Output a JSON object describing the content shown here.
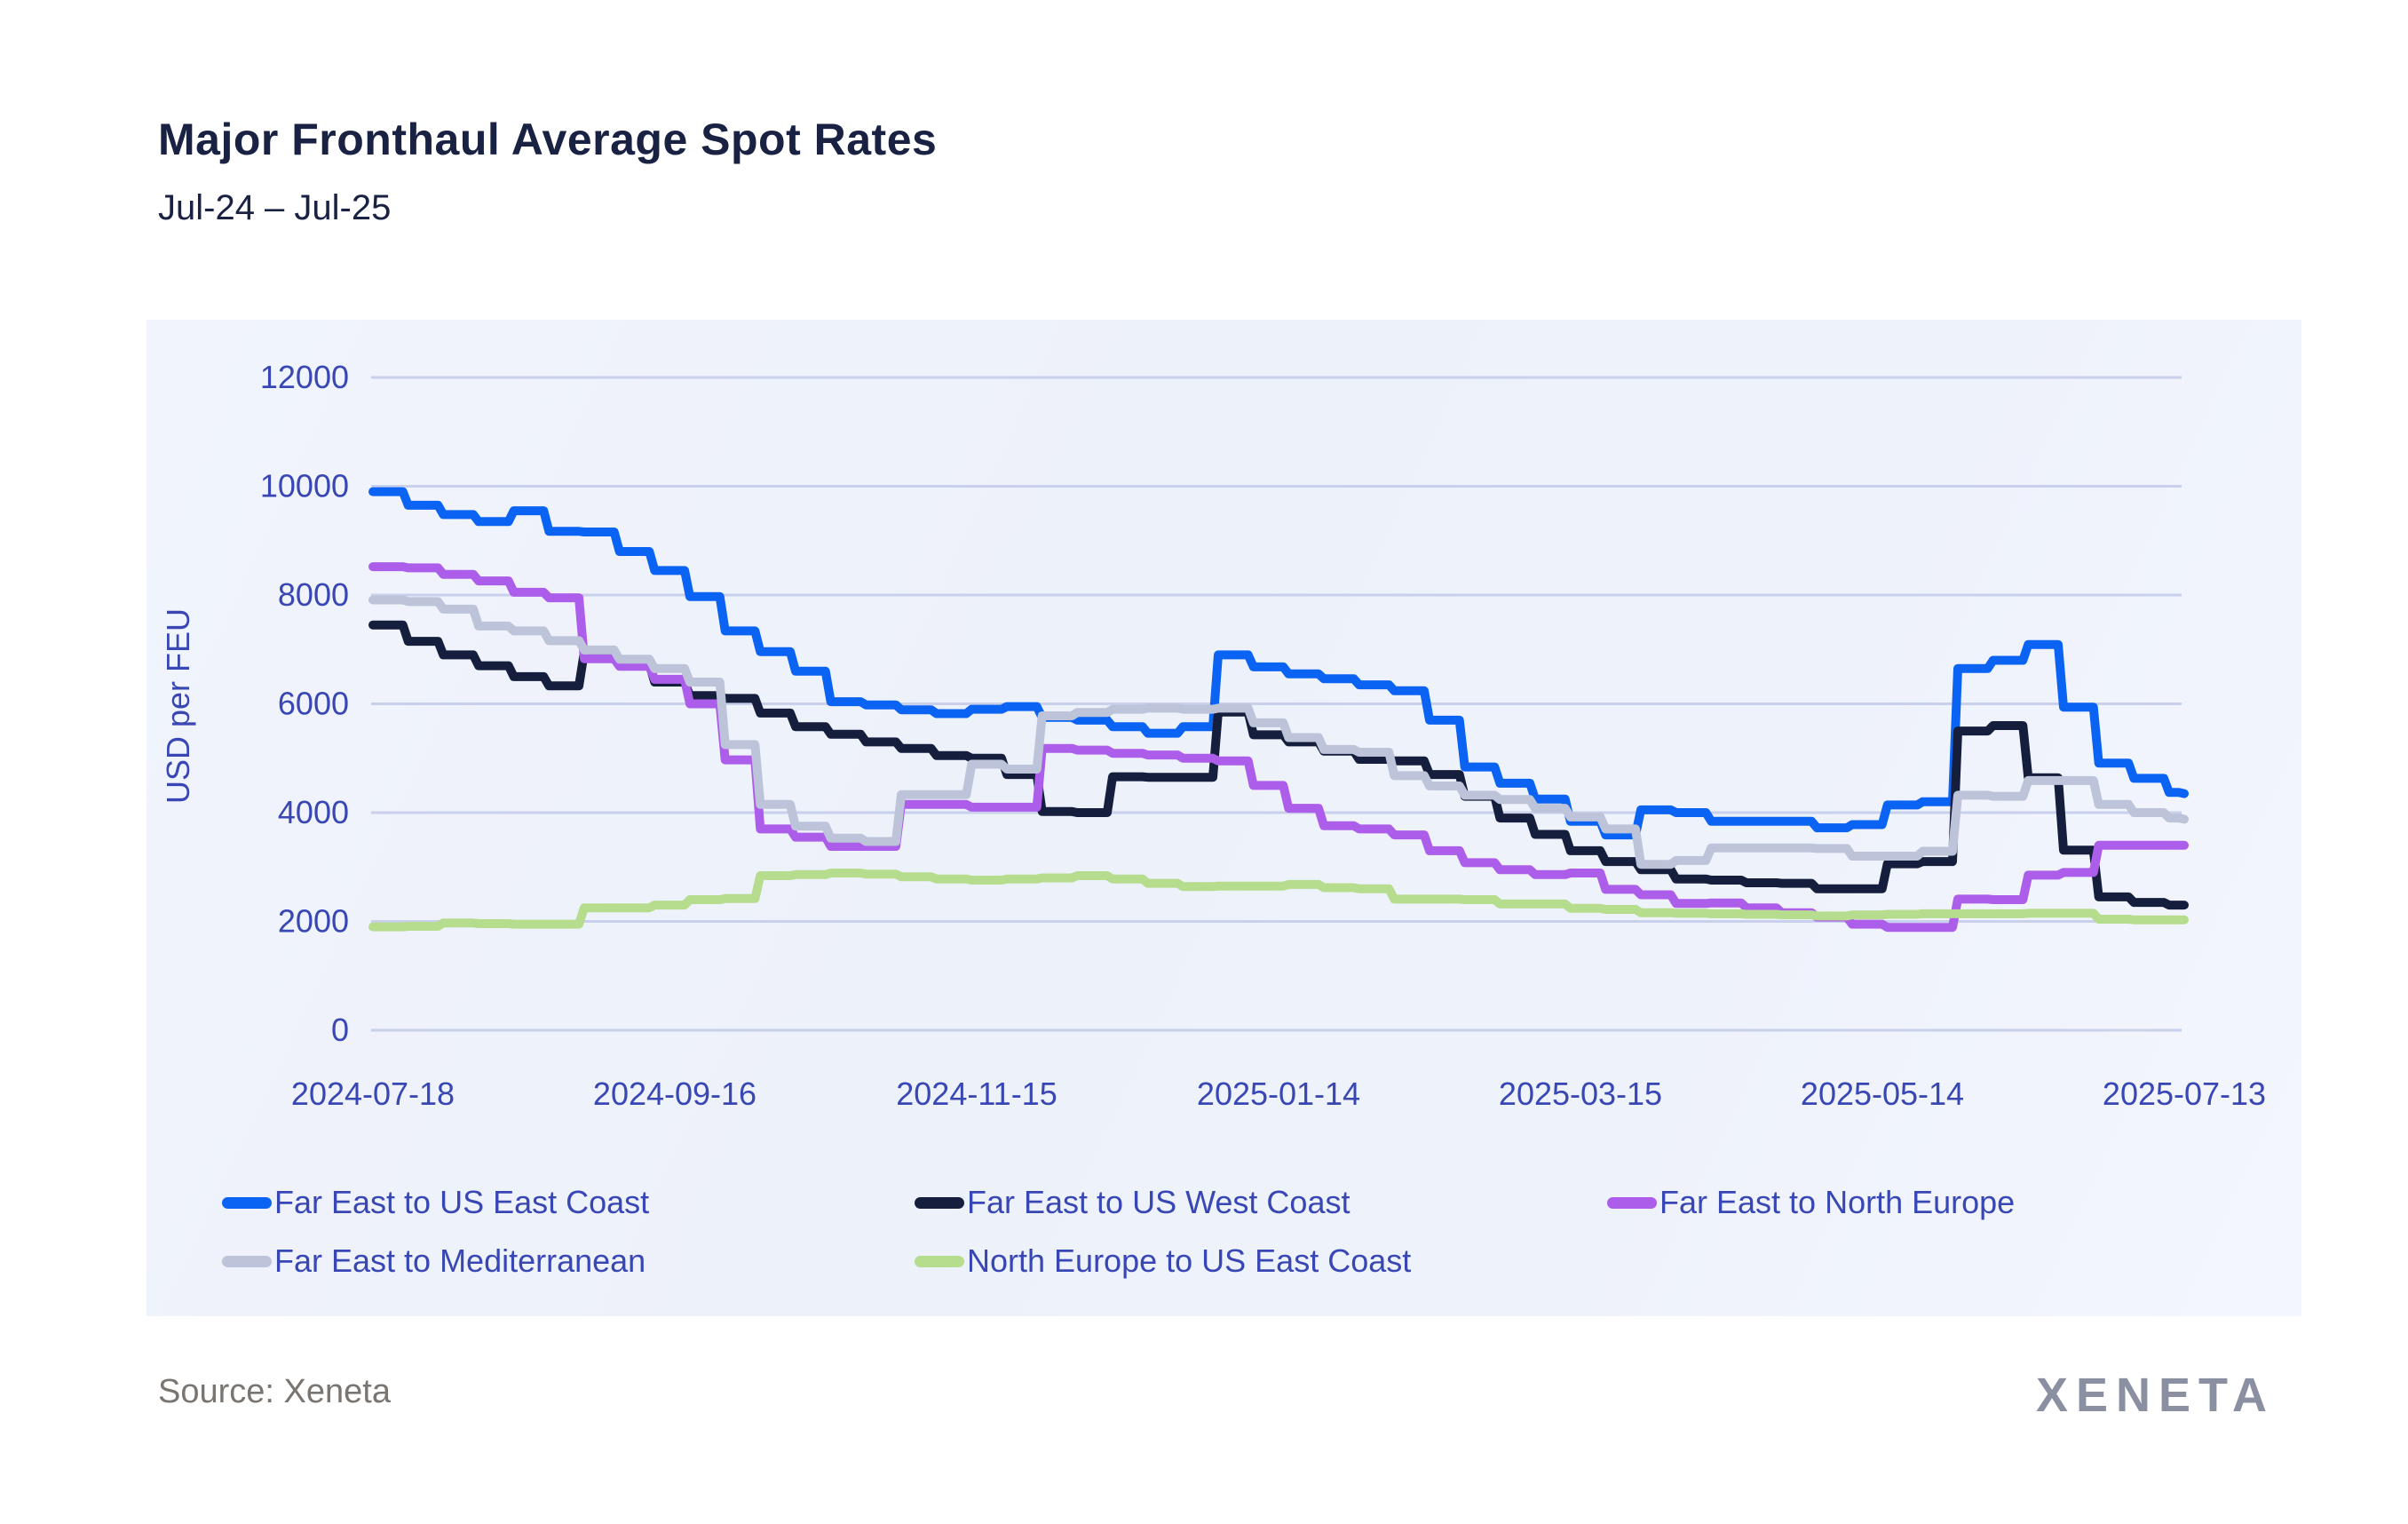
{
  "header": {
    "title": "Major Fronthaul Average Spot Rates",
    "subtitle": "Jul-24 – Jul-25"
  },
  "footer": {
    "source": "Source: Xeneta",
    "brand": "XENETA"
  },
  "palette": {
    "axis_text": "#3847B4",
    "grid_line": "#C8D0EC",
    "title_text": "#1A2243",
    "source_text": "#7A7570",
    "logo_text": "#8A90A2",
    "panel_background": "#EEF2FB"
  },
  "chart_data": {
    "type": "line",
    "title": "Major Fronthaul Average Spot Rates",
    "subtitle": "Jul-24 – Jul-25",
    "xlabel": "",
    "ylabel": "USD per FEU",
    "ylim": [
      0,
      12000
    ],
    "grid": true,
    "legend_position": "bottom",
    "y_ticks": [
      0,
      2000,
      4000,
      6000,
      8000,
      10000,
      12000
    ],
    "x_ticks": [
      {
        "day": 0,
        "label": "2024-07-18"
      },
      {
        "day": 60,
        "label": "2024-09-16"
      },
      {
        "day": 120,
        "label": "2024-11-15"
      },
      {
        "day": 180,
        "label": "2025-01-14"
      },
      {
        "day": 240,
        "label": "2025-03-15"
      },
      {
        "day": 300,
        "label": "2025-05-14"
      },
      {
        "day": 360,
        "label": "2025-07-13"
      }
    ],
    "x_days": [
      0,
      7,
      14,
      21,
      28,
      35,
      42,
      49,
      56,
      63,
      70,
      77,
      84,
      91,
      98,
      105,
      112,
      119,
      126,
      133,
      140,
      147,
      154,
      161,
      168,
      175,
      182,
      189,
      196,
      203,
      210,
      217,
      224,
      231,
      238,
      245,
      252,
      259,
      266,
      273,
      280,
      287,
      294,
      301,
      308,
      315,
      322,
      329,
      336,
      343,
      350,
      357,
      360
    ],
    "series": [
      {
        "name": "Far East to US East Coast",
        "color": "#0B63F3",
        "values": [
          9900,
          9650,
          9480,
          9350,
          9550,
          9170,
          9160,
          8800,
          8450,
          7970,
          7340,
          6960,
          6600,
          6040,
          5980,
          5890,
          5820,
          5900,
          5950,
          5750,
          5700,
          5580,
          5460,
          5580,
          6900,
          6680,
          6550,
          6460,
          6350,
          6240,
          5700,
          4840,
          4540,
          4250,
          3840,
          3590,
          4050,
          4000,
          3840,
          3840,
          3840,
          3720,
          3780,
          4140,
          4200,
          6650,
          6800,
          7090,
          5940,
          4910,
          4630,
          4370,
          4350
        ]
      },
      {
        "name": "Far East to US West Coast",
        "color": "#151F3D",
        "values": [
          7450,
          7150,
          6900,
          6700,
          6500,
          6330,
          6950,
          6720,
          6400,
          6150,
          6100,
          5830,
          5580,
          5440,
          5300,
          5180,
          5050,
          5000,
          4700,
          4020,
          4000,
          4660,
          4650,
          4650,
          5850,
          5430,
          5300,
          5130,
          4980,
          4950,
          4700,
          4300,
          3900,
          3600,
          3300,
          3100,
          2950,
          2780,
          2760,
          2710,
          2700,
          2600,
          2600,
          3060,
          3100,
          5500,
          5600,
          4640,
          3310,
          2450,
          2350,
          2300,
          2300
        ]
      },
      {
        "name": "Far East to North Europe",
        "color": "#AC5DE9",
        "values": [
          8520,
          8500,
          8380,
          8260,
          8050,
          7950,
          6830,
          6690,
          6450,
          6000,
          4970,
          3700,
          3550,
          3380,
          3380,
          4150,
          4150,
          4100,
          4100,
          5180,
          5150,
          5090,
          5060,
          5000,
          4950,
          4500,
          4080,
          3760,
          3700,
          3590,
          3300,
          3080,
          2950,
          2860,
          2890,
          2590,
          2490,
          2330,
          2340,
          2250,
          2160,
          2080,
          1950,
          1890,
          1890,
          2410,
          2400,
          2850,
          2900,
          3400,
          3400,
          3400,
          3400
        ]
      },
      {
        "name": "Far East to Mediterranean",
        "color": "#BDC4D9",
        "values": [
          7910,
          7880,
          7740,
          7430,
          7340,
          7160,
          6990,
          6820,
          6650,
          6400,
          5250,
          4150,
          3750,
          3530,
          3470,
          4330,
          4330,
          4890,
          4800,
          5780,
          5840,
          5900,
          5920,
          5900,
          5920,
          5650,
          5380,
          5160,
          5110,
          4680,
          4490,
          4320,
          4240,
          4080,
          3920,
          3700,
          3050,
          3120,
          3350,
          3350,
          3350,
          3340,
          3200,
          3200,
          3290,
          4320,
          4300,
          4590,
          4590,
          4150,
          4000,
          3900,
          3880
        ]
      },
      {
        "name": "North Europe to US East Coast",
        "color": "#B6DC8E",
        "values": [
          1900,
          1910,
          1970,
          1960,
          1950,
          1950,
          2250,
          2250,
          2300,
          2400,
          2420,
          2840,
          2860,
          2890,
          2870,
          2820,
          2780,
          2760,
          2780,
          2800,
          2840,
          2780,
          2700,
          2640,
          2650,
          2650,
          2680,
          2620,
          2600,
          2410,
          2410,
          2400,
          2320,
          2320,
          2240,
          2220,
          2160,
          2150,
          2140,
          2130,
          2120,
          2100,
          2120,
          2130,
          2140,
          2140,
          2140,
          2150,
          2150,
          2040,
          2030,
          2030,
          2030
        ]
      }
    ]
  }
}
